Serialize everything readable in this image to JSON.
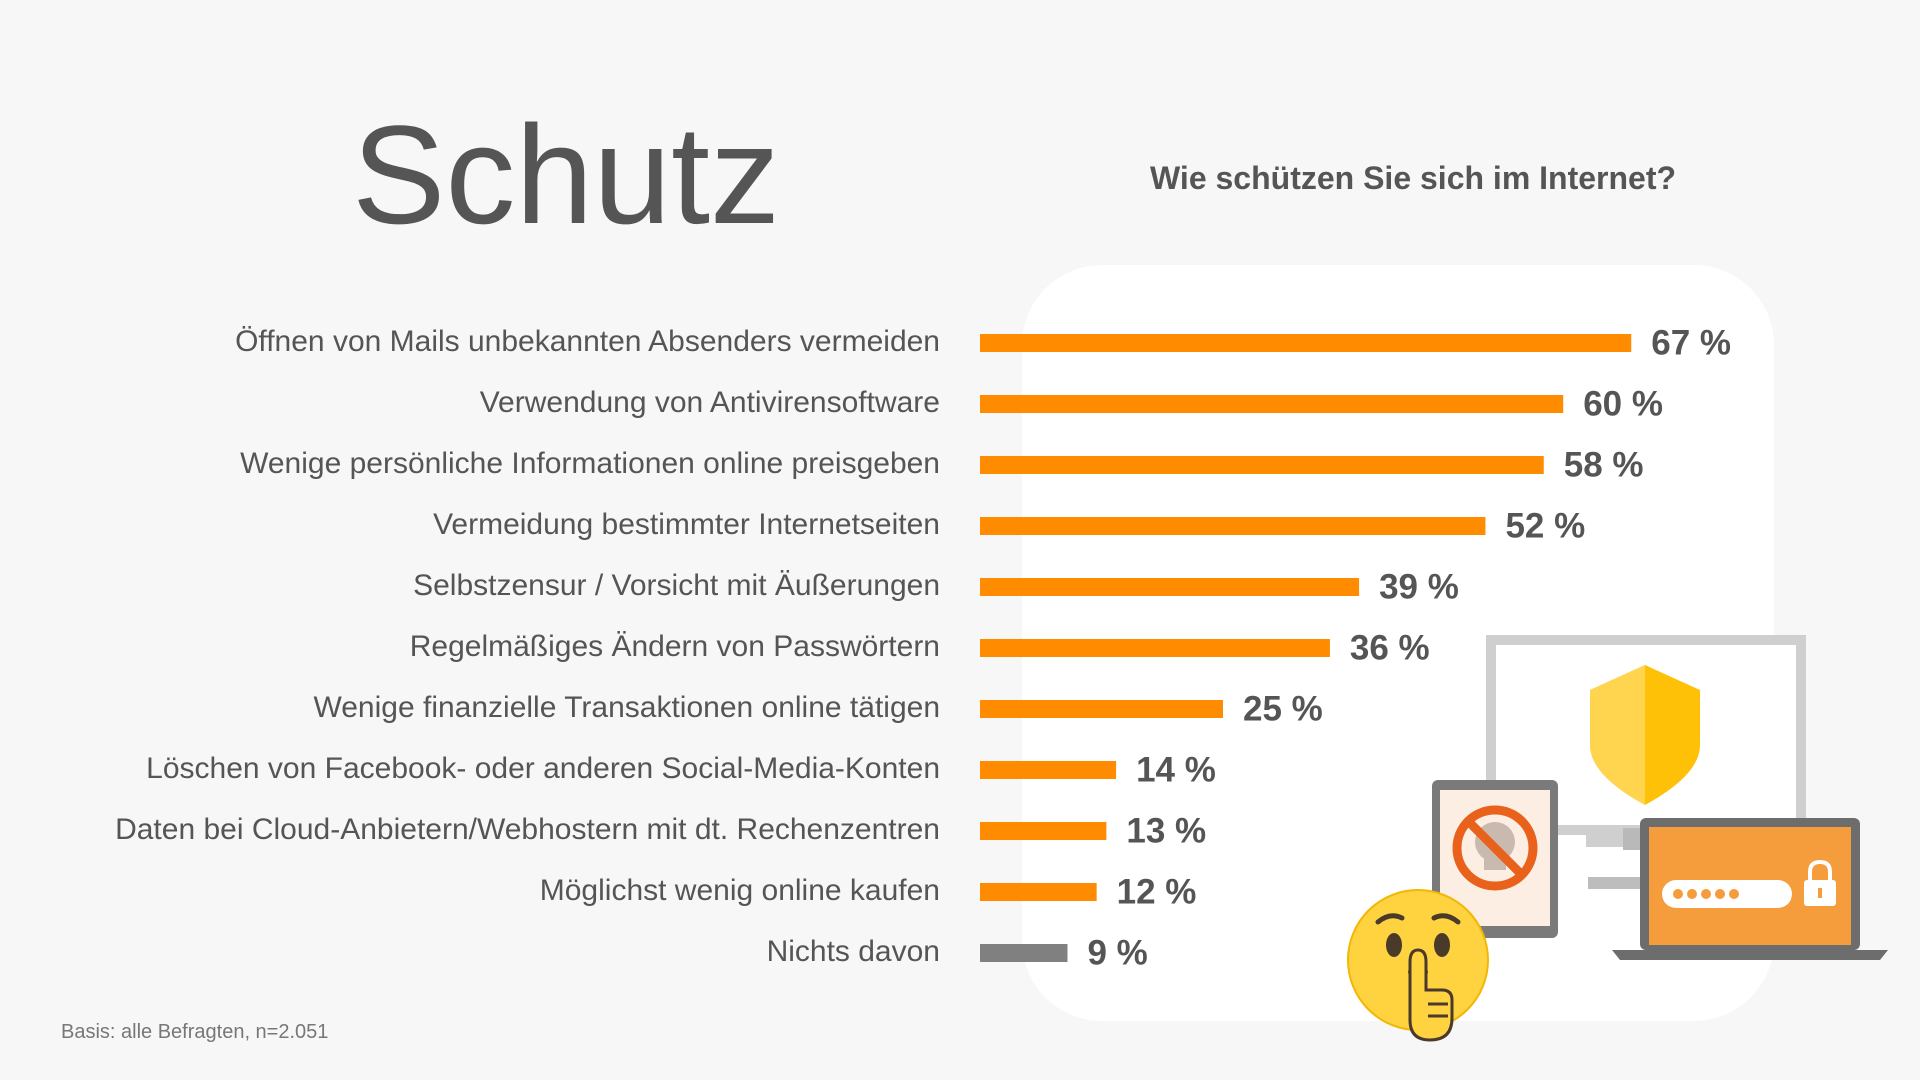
{
  "header": {
    "title": "Schutz",
    "question": "Wie schützen Sie sich im Internet?"
  },
  "footnote": "Basis: alle Befragten, n=2.051",
  "colors": {
    "bar": "#ff8c00",
    "bar_none": "#808080",
    "text": "#555555",
    "background": "#f7f7f7",
    "panel": "#ffffff"
  },
  "chart_data": {
    "type": "bar",
    "orientation": "horizontal",
    "title": "Wie schützen Sie sich im Internet?",
    "xlim": [
      0,
      100
    ],
    "grid": false,
    "value_suffix": " %",
    "categories": [
      "Öffnen von Mails unbekannten Absenders vermeiden",
      "Verwendung von Antivirensoftware",
      "Wenige persönliche Informationen online preisgeben",
      "Vermeidung bestimmter Internetseiten",
      "Selbstzensur / Vorsicht mit Äußerungen",
      "Regelmäßiges Ändern von Passwörtern",
      "Wenige finanzielle Transaktionen online tätigen",
      "Löschen von Facebook- oder anderen Social-Media-Konten",
      "Daten bei Cloud-Anbietern/Webhostern mit dt. Rechenzentren",
      "Möglichst wenig online kaufen",
      "Nichts davon"
    ],
    "values": [
      67,
      60,
      58,
      52,
      39,
      36,
      25,
      14,
      13,
      12,
      9
    ],
    "value_labels": [
      "67 %",
      "60 %",
      "58 %",
      "52 %",
      "39 %",
      "36 %",
      "25 %",
      "14 %",
      "13 %",
      "12 %",
      "9 %"
    ]
  },
  "illustration": {
    "icons": [
      "monitor-icon",
      "shield-icon",
      "tablet-icon",
      "no-skull-icon",
      "laptop-icon",
      "password-field-icon",
      "padlock-icon",
      "shushing-face-emoji"
    ]
  }
}
